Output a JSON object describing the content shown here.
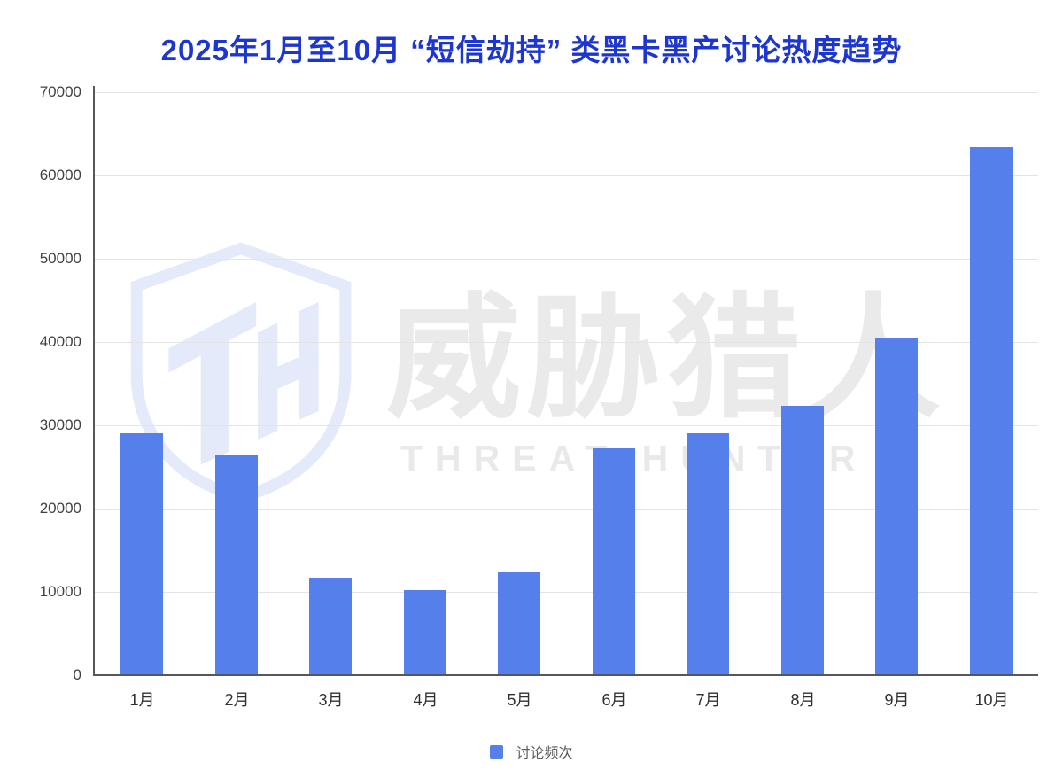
{
  "title": "2025年1月至10月 “短信劫持” 类黑卡黑产讨论热度趋势",
  "watermark": {
    "logo_monogram": "TH",
    "cn_text": "威胁猎人",
    "en_text": "THREAT HUNTER"
  },
  "legend": {
    "label": "讨论频次",
    "swatch_color": "#5580ec"
  },
  "colors": {
    "title": "#1c36cf",
    "bar": "#5580ec",
    "gridline": "#e4e4e4",
    "axis": "#54575c",
    "tick_label": "#414141",
    "watermark_text": "#eaeaea",
    "watermark_logo": "#e4eafa"
  },
  "chart_data": {
    "type": "bar",
    "title": "2025年1月至10月 “短信劫持” 类黑卡黑产讨论热度趋势",
    "categories": [
      "1月",
      "2月",
      "3月",
      "4月",
      "5月",
      "6月",
      "7月",
      "8月",
      "9月",
      "10月"
    ],
    "series": [
      {
        "name": "讨论频次",
        "values": [
          29000,
          26500,
          11700,
          10200,
          12400,
          27200,
          29000,
          32300,
          40400,
          63400
        ]
      }
    ],
    "xlabel": "",
    "ylabel": "",
    "ylim": [
      0,
      70000
    ],
    "yticks": [
      0,
      10000,
      20000,
      30000,
      40000,
      50000,
      60000,
      70000
    ],
    "grid": true,
    "legend_position": "bottom",
    "bar_color": "#5580ec"
  }
}
